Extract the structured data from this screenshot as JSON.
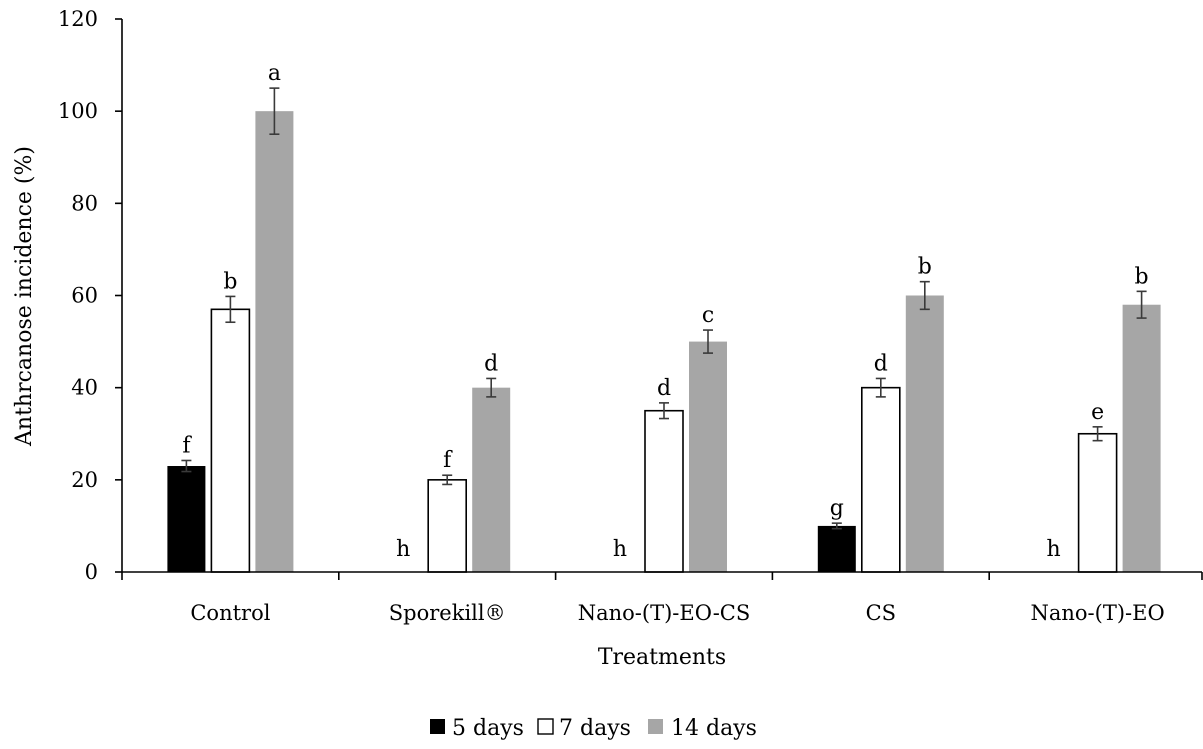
{
  "chart_data": {
    "type": "bar",
    "title": "",
    "xlabel": "Treatments",
    "ylabel": "Anthrcanose incidence (%)",
    "ylim": [
      0,
      120
    ],
    "yticks": [
      0,
      20,
      40,
      60,
      80,
      100,
      120
    ],
    "grid": false,
    "legend_position": "bottom-center",
    "categories": [
      "Control",
      "Sporekill®",
      "Nano-(T)-EO-CS",
      "CS",
      "Nano-(T)-EO"
    ],
    "series": [
      {
        "name": "5 days",
        "color": "#000000",
        "fill": "solid-black",
        "values": [
          23,
          0,
          0,
          10,
          0
        ],
        "errors": [
          1.2,
          null,
          null,
          0.6,
          null
        ],
        "labels": [
          "f",
          "h",
          "h",
          "g",
          "h"
        ]
      },
      {
        "name": "7 days",
        "color": "#ffffff",
        "fill": "white-with-black-outline",
        "values": [
          57,
          20,
          35,
          40,
          30
        ],
        "errors": [
          2.8,
          1.0,
          1.7,
          2.0,
          1.5
        ],
        "labels": [
          "b",
          "f",
          "d",
          "d",
          "e"
        ]
      },
      {
        "name": "14 days",
        "color": "#a6a6a6",
        "fill": "solid-gray",
        "values": [
          100,
          40,
          50,
          60,
          58
        ],
        "errors": [
          5.0,
          2.0,
          2.5,
          3.0,
          2.9
        ],
        "labels": [
          "a",
          "d",
          "c",
          "b",
          "b"
        ]
      }
    ]
  }
}
